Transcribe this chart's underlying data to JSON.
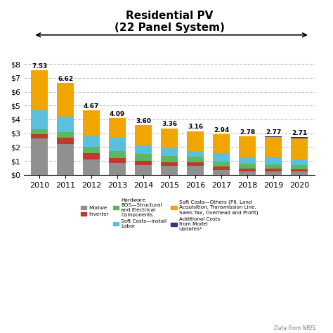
{
  "years": [
    "2010",
    "2011",
    "2012",
    "2013",
    "2014",
    "2015",
    "2016",
    "2017",
    "2018",
    "2019",
    "2020"
  ],
  "totals": [
    7.53,
    6.62,
    4.67,
    4.09,
    3.6,
    3.36,
    3.16,
    2.94,
    2.78,
    2.77,
    2.71
  ],
  "segments": {
    "module": [
      2.65,
      2.24,
      1.1,
      0.84,
      0.72,
      0.64,
      0.64,
      0.35,
      0.25,
      0.25,
      0.25
    ],
    "inverter": [
      0.3,
      0.45,
      0.45,
      0.36,
      0.28,
      0.28,
      0.28,
      0.25,
      0.22,
      0.18,
      0.16
    ],
    "hardware_bos": [
      0.35,
      0.42,
      0.45,
      0.5,
      0.5,
      0.45,
      0.4,
      0.35,
      0.32,
      0.3,
      0.28
    ],
    "soft_install": [
      1.38,
      1.08,
      0.8,
      0.96,
      0.6,
      0.55,
      0.35,
      0.59,
      0.49,
      0.55,
      0.42
    ],
    "soft_others": [
      2.85,
      2.43,
      1.87,
      1.43,
      1.5,
      1.44,
      1.49,
      1.4,
      1.5,
      1.43,
      1.54
    ],
    "additional": [
      0.0,
      0.0,
      0.0,
      0.0,
      0.0,
      0.0,
      0.0,
      0.0,
      0.0,
      0.06,
      0.06
    ]
  },
  "colors": {
    "module": "#909090",
    "inverter": "#C0392B",
    "hardware_bos": "#5CB85C",
    "soft_install": "#5BC0DE",
    "soft_others": "#F0A500",
    "additional": "#2C3E70"
  },
  "legend_labels": {
    "soft_others": "Soft Costs—Others (PII, Land\nAcquisition, Transmission Line,\nSales Tax, Overhead and Profit)",
    "soft_install": "Soft Costs—Install\nLabor",
    "hardware_bos": "Hardware\nBOS—Structural\nand Electrical\nComponents",
    "inverter": "Inverter",
    "module": "Module",
    "additional": "Additional Costs\nfrom Model\nUpdates*"
  },
  "title_line1": "Residential PV",
  "title_line2": "(22 Panel System)",
  "ylim": [
    0,
    8.4
  ],
  "yticks": [
    0,
    1,
    2,
    3,
    4,
    5,
    6,
    7,
    8
  ],
  "ytick_labels": [
    "$0",
    "$1",
    "$2",
    "$3",
    "$4",
    "$5",
    "$6",
    "$7",
    "$8"
  ],
  "background_color": "#FFFFFF",
  "grid_color": "#AAAAAA",
  "footnote": "Data from NREL"
}
